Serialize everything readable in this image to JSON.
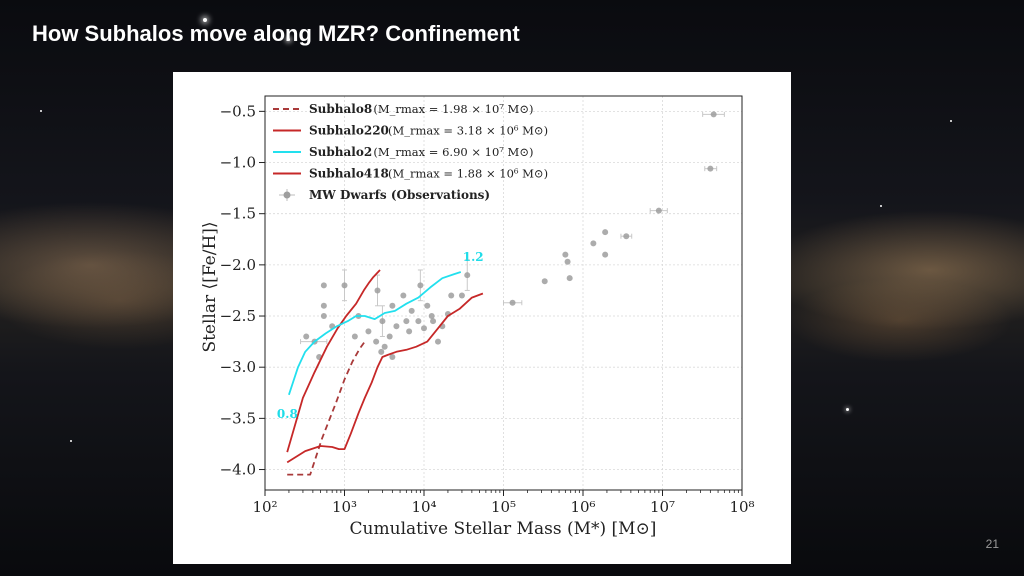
{
  "slide": {
    "title": "How Subhalos move along MZR? Confinement",
    "page_number": "21"
  },
  "chart_data": {
    "type": "line",
    "title": "",
    "xlabel": "Cumulative Stellar Mass (M*) [M⊙]",
    "ylabel": "Stellar ⟨[Fe/H]⟩",
    "xscale": "log",
    "xlim": [
      100,
      100000000
    ],
    "ylim": [
      -4.2,
      -0.35
    ],
    "x_ticks": [
      100,
      1000,
      10000,
      100000,
      1000000,
      10000000,
      100000000
    ],
    "x_tick_labels": [
      "10²",
      "10³",
      "10⁴",
      "10⁵",
      "10⁶",
      "10⁷",
      "10⁸"
    ],
    "y_ticks": [
      -4.0,
      -3.5,
      -3.0,
      -2.5,
      -2.0,
      -1.5,
      -1.0,
      -0.5
    ],
    "y_tick_labels": [
      "−4.0",
      "−3.5",
      "−3.0",
      "−2.5",
      "−2.0",
      "−1.5",
      "−1.0",
      "−0.5"
    ],
    "grid": true,
    "legend_position": "top-left",
    "annotations": [
      {
        "text": "0.8",
        "x": 200,
        "y": -3.38,
        "color": "#1fdce8"
      },
      {
        "text": "1.2",
        "x": 29000,
        "y": -2.02,
        "color": "#1fdce8"
      }
    ],
    "series": [
      {
        "name": "Subhalo8",
        "legend_mass": "(M_rmax = 1.98 × 10⁷ M⊙)",
        "color": "#a93a3a",
        "style": "dashed",
        "x": [
          190,
          370,
          520,
          780,
          1000,
          1250,
          1550,
          1800
        ],
        "y": [
          -4.05,
          -4.05,
          -3.7,
          -3.35,
          -3.12,
          -2.95,
          -2.82,
          -2.75
        ]
      },
      {
        "name": "Subhalo220",
        "legend_mass": "(M_rmax = 3.18 × 10⁶ M⊙)",
        "color": "#c62828",
        "style": "solid",
        "x": [
          190,
          300,
          420,
          600,
          820,
          1050,
          1400,
          1750,
          2050,
          2300,
          2800
        ],
        "y": [
          -3.83,
          -3.3,
          -3.05,
          -2.8,
          -2.62,
          -2.5,
          -2.38,
          -2.25,
          -2.17,
          -2.12,
          -2.05
        ]
      },
      {
        "name": "Subhalo2",
        "legend_mass": "(M_rmax = 6.90 × 10⁷ M⊙)",
        "color": "#22e0ee",
        "style": "solid",
        "x": [
          200,
          260,
          320,
          420,
          580,
          800,
          1100,
          1400,
          1800,
          2400,
          3200,
          4300,
          6000,
          8500,
          12000,
          17000,
          24000,
          29000
        ],
        "y": [
          -3.27,
          -3.0,
          -2.85,
          -2.75,
          -2.67,
          -2.6,
          -2.55,
          -2.5,
          -2.5,
          -2.53,
          -2.47,
          -2.45,
          -2.38,
          -2.32,
          -2.22,
          -2.13,
          -2.09,
          -2.07
        ]
      },
      {
        "name": "Subhalo418",
        "legend_mass": "(M_rmax = 1.88 × 10⁶ M⊙)",
        "color": "#c62828",
        "style": "solid",
        "x": [
          190,
          320,
          500,
          700,
          850,
          1000,
          1200,
          1500,
          1800,
          2200,
          2600,
          3000,
          3500,
          4500,
          6000,
          8000,
          11000,
          15000,
          20000,
          28000,
          40000,
          55000
        ],
        "y": [
          -3.93,
          -3.82,
          -3.77,
          -3.78,
          -3.8,
          -3.8,
          -3.65,
          -3.45,
          -3.3,
          -3.15,
          -3.0,
          -2.9,
          -2.88,
          -2.85,
          -2.83,
          -2.8,
          -2.75,
          -2.62,
          -2.5,
          -2.43,
          -2.32,
          -2.28
        ]
      }
    ],
    "scatter": {
      "name": "MW Dwarfs (Observations)",
      "color": "#9e9e9e",
      "points": [
        {
          "x": 44000000,
          "y": -0.53,
          "ex": [
            32000000,
            60000000
          ]
        },
        {
          "x": 40000000,
          "y": -1.06,
          "ex": [
            34000000,
            48000000
          ]
        },
        {
          "x": 9000000,
          "y": -1.47,
          "ex": [
            7000000,
            11500000
          ]
        },
        {
          "x": 3500000,
          "y": -1.72,
          "ex": [
            3000000,
            4100000
          ]
        },
        {
          "x": 1900000,
          "y": -1.68
        },
        {
          "x": 1900000,
          "y": -1.9
        },
        {
          "x": 1350000,
          "y": -1.79
        },
        {
          "x": 600000,
          "y": -1.9
        },
        {
          "x": 640000,
          "y": -1.97
        },
        {
          "x": 680000,
          "y": -2.13
        },
        {
          "x": 330000,
          "y": -2.16
        },
        {
          "x": 130000,
          "y": -2.37,
          "ex": [
            100000,
            170000
          ]
        },
        {
          "x": 35000,
          "y": -2.1,
          "ey": [
            -2.25,
            -1.95
          ]
        },
        {
          "x": 30000,
          "y": -2.3
        },
        {
          "x": 20000,
          "y": -2.48
        },
        {
          "x": 9000,
          "y": -2.2,
          "ey": [
            -2.35,
            -2.05
          ]
        },
        {
          "x": 11000,
          "y": -2.4
        },
        {
          "x": 7000,
          "y": -2.45
        },
        {
          "x": 13000,
          "y": -2.55
        },
        {
          "x": 10000,
          "y": -2.62
        },
        {
          "x": 5500,
          "y": -2.3
        },
        {
          "x": 4000,
          "y": -2.4
        },
        {
          "x": 3000,
          "y": -2.55,
          "ey": [
            -2.7,
            -2.4
          ]
        },
        {
          "x": 2500,
          "y": -2.75
        },
        {
          "x": 2000,
          "y": -2.65
        },
        {
          "x": 15000,
          "y": -2.75
        },
        {
          "x": 17000,
          "y": -2.6
        },
        {
          "x": 6500,
          "y": -2.65
        },
        {
          "x": 3700,
          "y": -2.7
        },
        {
          "x": 4000,
          "y": -2.9
        },
        {
          "x": 2900,
          "y": -2.85
        },
        {
          "x": 3200,
          "y": -2.8
        },
        {
          "x": 1000,
          "y": -2.2,
          "ey": [
            -2.35,
            -2.05
          ]
        },
        {
          "x": 550,
          "y": -2.2
        },
        {
          "x": 550,
          "y": -2.4
        },
        {
          "x": 550,
          "y": -2.5
        },
        {
          "x": 700,
          "y": -2.6
        },
        {
          "x": 420,
          "y": -2.75,
          "ex": [
            280,
            600
          ]
        },
        {
          "x": 330,
          "y": -2.7
        },
        {
          "x": 480,
          "y": -2.9
        },
        {
          "x": 1500,
          "y": -2.5
        },
        {
          "x": 1350,
          "y": -2.7
        },
        {
          "x": 2600,
          "y": -2.25,
          "ey": [
            -2.4,
            -2.1
          ]
        },
        {
          "x": 6000,
          "y": -2.55
        },
        {
          "x": 8500,
          "y": -2.55
        },
        {
          "x": 22000,
          "y": -2.3
        },
        {
          "x": 12500,
          "y": -2.5
        },
        {
          "x": 4500,
          "y": -2.6
        }
      ]
    }
  }
}
